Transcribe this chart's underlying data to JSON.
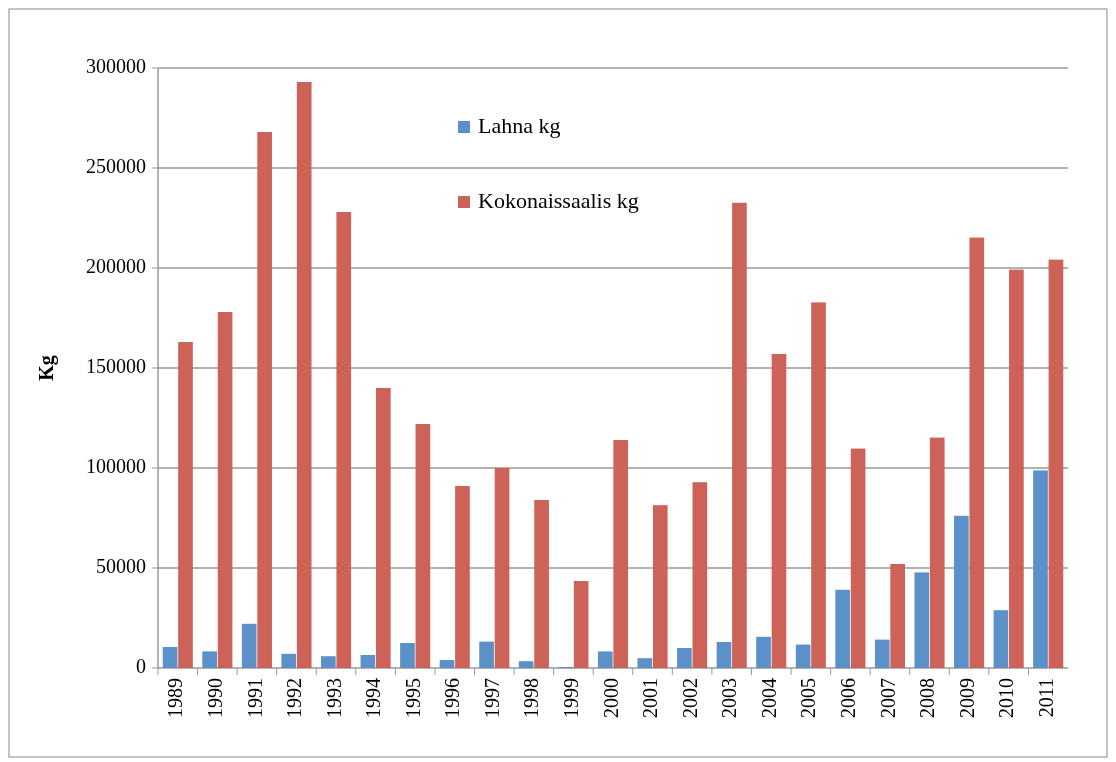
{
  "chart_data": {
    "type": "bar",
    "ylabel": "Kg",
    "categories": [
      "1989",
      "1990",
      "1991",
      "1992",
      "1993",
      "1994",
      "1995",
      "1996",
      "1997",
      "1998",
      "1999",
      "2000",
      "2001",
      "2002",
      "2003",
      "2004",
      "2005",
      "2006",
      "2007",
      "2008",
      "2009",
      "2010",
      "2011"
    ],
    "series": [
      {
        "name": "Lahna kg",
        "color": "#5b90c8",
        "values": [
          10500,
          8300,
          22100,
          7100,
          5900,
          6500,
          12500,
          4000,
          13200,
          3400,
          500,
          8300,
          4900,
          10000,
          13000,
          15600,
          11700,
          39100,
          14200,
          47800,
          76100,
          28900,
          98800
        ]
      },
      {
        "name": "Kokonaissaalis kg",
        "color": "#cc6258",
        "values": [
          163000,
          178000,
          268000,
          293000,
          228000,
          140000,
          122000,
          91000,
          100000,
          84000,
          43500,
          114000,
          81400,
          92900,
          232600,
          157000,
          182800,
          109700,
          52000,
          115200,
          215200,
          199200,
          204200
        ]
      }
    ],
    "ylim": [
      0,
      300000
    ],
    "yticks": [
      0,
      50000,
      100000,
      150000,
      200000,
      250000,
      300000
    ],
    "grid": "y",
    "legend": "top"
  }
}
